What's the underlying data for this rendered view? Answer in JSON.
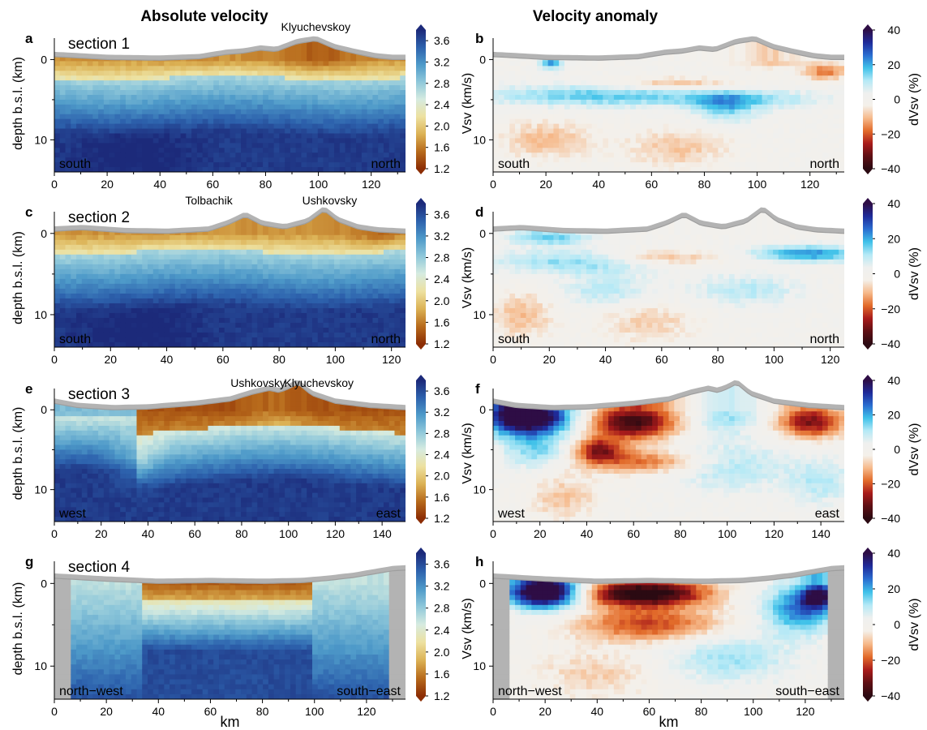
{
  "columns": {
    "left_title": "Absolute velocity",
    "right_title": "Velocity anomaly"
  },
  "colors": {
    "topo_fill": "#b3b3b3",
    "topo_line": "#9e9e9e",
    "abs_ramp": [
      "#8c2d04",
      "#b86b1c",
      "#dcb255",
      "#ede1a0",
      "#d6ebe0",
      "#8fc8da",
      "#4e9ac9",
      "#2d62ad",
      "#1c2a7a"
    ],
    "anom_ramp": [
      "#2b0a12",
      "#5e0f14",
      "#a81b1b",
      "#e26b2a",
      "#f6b98a",
      "#f4f0ea",
      "#eff0ef",
      "#b4e9f6",
      "#3fc1e9",
      "#2a6dd0",
      "#1f2b9a",
      "#2e0d45"
    ]
  },
  "chart_data": [
    {
      "type": "heatmap",
      "panel": "a",
      "section_label": "section 1",
      "quantity": "absolute",
      "xlim": [
        0,
        133
      ],
      "xticks": [
        "0",
        "20",
        "40",
        "60",
        "80",
        "100",
        "120"
      ],
      "ylim": [
        14,
        -3
      ],
      "yticks": [
        "0",
        "10"
      ],
      "ylabel": "depth b.s.l. (km)",
      "xlabel": "",
      "left_label": "south",
      "right_label": "north",
      "volcanoes": [
        {
          "name": "Klyuchevskoy",
          "x": 99
        }
      ],
      "topography": {
        "x": [
          0,
          20,
          40,
          55,
          65,
          72,
          78,
          84,
          92,
          99,
          106,
          114,
          122,
          128,
          133
        ],
        "elev": [
          0.4,
          0.0,
          -0.1,
          0.1,
          0.7,
          0.9,
          1.3,
          1.1,
          2.2,
          2.6,
          1.5,
          0.8,
          0.2,
          0.0,
          0.0
        ]
      },
      "colorbar": {
        "label": "",
        "ticks": [
          "1.2",
          "1.6",
          "2.0",
          "2.4",
          "2.8",
          "3.2",
          "3.6"
        ],
        "range": [
          1.2,
          3.8
        ]
      }
    },
    {
      "type": "heatmap",
      "panel": "b",
      "section_label": "",
      "quantity": "anomaly",
      "xlim": [
        0,
        133
      ],
      "xticks": [
        "0",
        "20",
        "40",
        "60",
        "80",
        "100",
        "120"
      ],
      "ylim": [
        14,
        -3
      ],
      "yticks": [
        "0",
        "10"
      ],
      "ylabel": "Vsv (km/s)",
      "xlabel": "",
      "left_label": "south",
      "right_label": "north",
      "volcanoes": [],
      "topography": {
        "x": [
          0,
          20,
          40,
          55,
          65,
          72,
          78,
          84,
          92,
          99,
          106,
          114,
          122,
          128,
          133
        ],
        "elev": [
          0.4,
          0.0,
          -0.1,
          0.1,
          0.7,
          0.9,
          1.3,
          1.1,
          2.2,
          2.6,
          1.5,
          0.8,
          0.2,
          0.0,
          0.0
        ]
      },
      "colorbar": {
        "label": "dVsv (%)",
        "ticks": [
          "−40",
          "−20",
          "0",
          "20",
          "40"
        ],
        "range": [
          -40,
          40
        ]
      }
    },
    {
      "type": "heatmap",
      "panel": "c",
      "section_label": "section 2",
      "quantity": "absolute",
      "xlim": [
        0,
        125
      ],
      "xticks": [
        "0",
        "20",
        "40",
        "60",
        "80",
        "100",
        "120"
      ],
      "ylim": [
        14,
        -3
      ],
      "yticks": [
        "0",
        "10"
      ],
      "ylabel": "depth b.s.l. (km)",
      "xlabel": "",
      "left_label": "south",
      "right_label": "north",
      "volcanoes": [
        {
          "name": "Tolbachik",
          "x": 55
        },
        {
          "name": "Ushkovsky",
          "x": 98
        }
      ],
      "topography": {
        "x": [
          0,
          10,
          25,
          40,
          55,
          62,
          68,
          74,
          82,
          90,
          96,
          101,
          108,
          115,
          125
        ],
        "elev": [
          0.3,
          0.5,
          0.1,
          0.0,
          0.3,
          1.2,
          2.3,
          1.1,
          0.6,
          1.4,
          3.1,
          1.6,
          0.6,
          0.2,
          0.0
        ]
      },
      "colorbar": {
        "label": "",
        "ticks": [
          "1.2",
          "1.6",
          "2.0",
          "2.4",
          "2.8",
          "3.2",
          "3.6"
        ],
        "range": [
          1.2,
          3.8
        ]
      }
    },
    {
      "type": "heatmap",
      "panel": "d",
      "section_label": "",
      "quantity": "anomaly",
      "xlim": [
        0,
        125
      ],
      "xticks": [
        "0",
        "20",
        "40",
        "60",
        "80",
        "100",
        "120"
      ],
      "ylim": [
        14,
        -3
      ],
      "yticks": [
        "0",
        "10"
      ],
      "ylabel": "Vsv (km/s)",
      "xlabel": "",
      "left_label": "south",
      "right_label": "north",
      "volcanoes": [],
      "topography": {
        "x": [
          0,
          10,
          25,
          40,
          55,
          62,
          68,
          74,
          82,
          90,
          96,
          101,
          108,
          115,
          125
        ],
        "elev": [
          0.3,
          0.5,
          0.1,
          0.0,
          0.3,
          1.2,
          2.3,
          1.1,
          0.6,
          1.4,
          3.1,
          1.6,
          0.6,
          0.2,
          0.0
        ]
      },
      "colorbar": {
        "label": "dVsv (%)",
        "ticks": [
          "−40",
          "−20",
          "0",
          "20",
          "40"
        ],
        "range": [
          -40,
          40
        ]
      }
    },
    {
      "type": "heatmap",
      "panel": "e",
      "section_label": "section 3",
      "quantity": "absolute",
      "xlim": [
        0,
        150
      ],
      "xticks": [
        "0",
        "20",
        "40",
        "60",
        "80",
        "100",
        "120",
        "140"
      ],
      "ylim": [
        14,
        -3
      ],
      "yticks": [
        "0",
        "10"
      ],
      "ylabel": "depth b.s.l. (km)",
      "xlabel": "",
      "left_label": "west",
      "right_label": "east",
      "volcanoes": [
        {
          "name": "Ushkovsky",
          "x": 87
        },
        {
          "name": "Klyuchevskoy",
          "x": 113
        }
      ],
      "topography": {
        "x": [
          0,
          10,
          25,
          40,
          60,
          75,
          85,
          92,
          96,
          100,
          104,
          110,
          120,
          135,
          150
        ],
        "elev": [
          0.9,
          0.3,
          0.0,
          0.1,
          0.6,
          1.2,
          2.2,
          2.7,
          2.4,
          2.9,
          3.6,
          2.0,
          0.9,
          0.3,
          0.0
        ]
      },
      "colorbar": {
        "label": "",
        "ticks": [
          "1.2",
          "1.6",
          "2.0",
          "2.4",
          "2.8",
          "3.2",
          "3.6"
        ],
        "range": [
          1.2,
          3.8
        ]
      }
    },
    {
      "type": "heatmap",
      "panel": "f",
      "section_label": "",
      "quantity": "anomaly",
      "xlim": [
        0,
        150
      ],
      "xticks": [
        "0",
        "20",
        "40",
        "60",
        "80",
        "100",
        "120",
        "140"
      ],
      "ylim": [
        14,
        -3
      ],
      "yticks": [
        "0",
        "10"
      ],
      "ylabel": "Vsv (km/s)",
      "xlabel": "",
      "left_label": "west",
      "right_label": "east",
      "volcanoes": [],
      "topography": {
        "x": [
          0,
          10,
          25,
          40,
          60,
          75,
          85,
          92,
          96,
          100,
          104,
          110,
          120,
          135,
          150
        ],
        "elev": [
          0.9,
          0.3,
          0.0,
          0.1,
          0.6,
          1.2,
          2.2,
          2.7,
          2.4,
          2.9,
          3.6,
          2.0,
          0.9,
          0.3,
          0.0
        ]
      },
      "colorbar": {
        "label": "dVsv (%)",
        "ticks": [
          "−40",
          "−20",
          "0",
          "20",
          "40"
        ],
        "range": [
          -40,
          40
        ]
      }
    },
    {
      "type": "heatmap",
      "panel": "g",
      "section_label": "section 4",
      "quantity": "absolute",
      "xlim": [
        0,
        135
      ],
      "xticks": [
        "0",
        "20",
        "40",
        "60",
        "80",
        "100",
        "120"
      ],
      "ylim": [
        14,
        -3
      ],
      "yticks": [
        "0",
        "10"
      ],
      "ylabel": "depth b.s.l. (km)",
      "xlabel": "km",
      "left_label": "north−west",
      "right_label": "south−east",
      "volcanoes": [],
      "topography": {
        "x": [
          0,
          20,
          40,
          60,
          80,
          95,
          105,
          115,
          125,
          130,
          135
        ],
        "elev": [
          0.7,
          0.3,
          0.0,
          0.1,
          0.0,
          0.1,
          0.4,
          0.8,
          1.4,
          1.7,
          1.8
        ]
      },
      "colorbar": {
        "label": "",
        "ticks": [
          "1.2",
          "1.6",
          "2.0",
          "2.4",
          "2.8",
          "3.2",
          "3.6"
        ],
        "range": [
          1.2,
          3.8
        ]
      }
    },
    {
      "type": "heatmap",
      "panel": "h",
      "section_label": "",
      "quantity": "anomaly",
      "xlim": [
        0,
        135
      ],
      "xticks": [
        "0",
        "20",
        "40",
        "60",
        "80",
        "100",
        "120"
      ],
      "ylim": [
        14,
        -3
      ],
      "yticks": [
        "0",
        "10"
      ],
      "ylabel": "Vsv (km/s)",
      "xlabel": "km",
      "left_label": "north−west",
      "right_label": "south−east",
      "volcanoes": [],
      "topography": {
        "x": [
          0,
          20,
          40,
          60,
          80,
          95,
          105,
          115,
          125,
          130,
          135
        ],
        "elev": [
          0.7,
          0.3,
          0.0,
          0.1,
          0.0,
          0.1,
          0.4,
          0.8,
          1.4,
          1.7,
          1.8
        ]
      },
      "colorbar": {
        "label": "dVsv (%)",
        "ticks": [
          "−40",
          "−20",
          "0",
          "20",
          "40"
        ],
        "range": [
          -40,
          40
        ]
      }
    }
  ]
}
